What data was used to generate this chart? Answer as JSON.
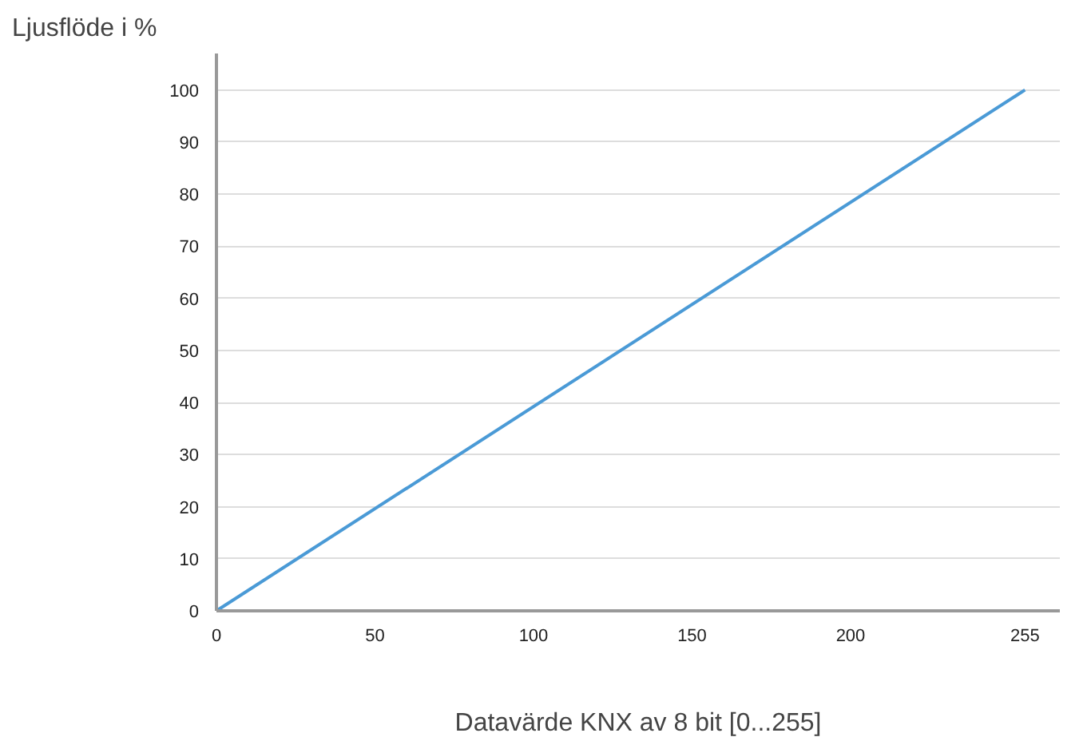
{
  "chart_data": {
    "type": "line",
    "ylabel": "Ljusflöde i %",
    "xlabel": "Datavärde KNX av 8 bit [0...255]",
    "x": [
      0,
      255
    ],
    "series": [
      {
        "color": "#4a9ad6",
        "values": [
          0,
          100
        ]
      }
    ],
    "xlim": [
      0,
      266
    ],
    "ylim": [
      0,
      107
    ],
    "xticks": [
      0,
      50,
      100,
      150,
      200,
      255
    ],
    "yticks": [
      0,
      10,
      20,
      30,
      40,
      50,
      60,
      70,
      80,
      90,
      100
    ],
    "grid": "y"
  }
}
